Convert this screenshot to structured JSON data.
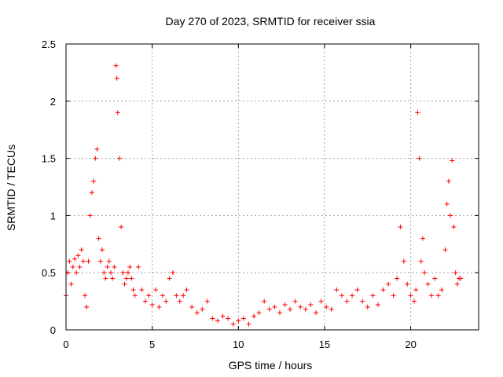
{
  "chart_data": {
    "type": "scatter",
    "title": "Day 270 of 2023, SRMTID for receiver ssia",
    "xlabel": "GPS time / hours",
    "ylabel": "SRMTID / TECUs",
    "xlim": [
      0,
      23.94
    ],
    "ylim": [
      0,
      2.5
    ],
    "x_ticks": [
      0,
      5,
      10,
      15,
      20
    ],
    "x_tick_labels": [
      "0",
      "5",
      "10",
      "15",
      "20"
    ],
    "y_ticks": [
      0,
      0.5,
      1,
      1.5,
      2,
      2.5
    ],
    "y_tick_labels": [
      "0",
      "0.5",
      "1",
      "1.5",
      "2",
      "2.5"
    ],
    "grid": true,
    "marker": "+",
    "colors": {
      "series": "#ff0000",
      "grid": "#a0a0a0",
      "frame": "#000000"
    },
    "series": [
      {
        "name": "SRMTID",
        "x": [
          0.0,
          0.1,
          0.2,
          0.3,
          0.4,
          0.5,
          0.6,
          0.7,
          0.8,
          0.9,
          1.0,
          1.1,
          1.2,
          1.3,
          1.4,
          1.5,
          1.6,
          1.7,
          1.8,
          1.9,
          2.0,
          2.1,
          2.2,
          2.3,
          2.4,
          2.5,
          2.6,
          2.7,
          2.8,
          2.9,
          2.95,
          3.0,
          3.1,
          3.2,
          3.3,
          3.4,
          3.5,
          3.6,
          3.7,
          3.8,
          3.9,
          4.0,
          4.2,
          4.4,
          4.6,
          4.8,
          5.0,
          5.2,
          5.4,
          5.6,
          5.8,
          6.0,
          6.2,
          6.4,
          6.6,
          6.8,
          7.0,
          7.3,
          7.6,
          7.9,
          8.2,
          8.5,
          8.8,
          9.1,
          9.4,
          9.7,
          10.0,
          10.3,
          10.6,
          10.9,
          11.2,
          11.5,
          11.8,
          12.1,
          12.4,
          12.7,
          13.0,
          13.3,
          13.6,
          13.9,
          14.2,
          14.5,
          14.8,
          15.1,
          15.4,
          15.7,
          16.0,
          16.3,
          16.6,
          16.9,
          17.2,
          17.5,
          17.8,
          18.1,
          18.4,
          18.7,
          19.0,
          19.2,
          19.4,
          19.6,
          19.8,
          20.0,
          20.2,
          20.3,
          20.4,
          20.5,
          20.6,
          20.7,
          20.8,
          21.0,
          21.2,
          21.4,
          21.6,
          21.8,
          22.0,
          22.1,
          22.2,
          22.3,
          22.4,
          22.5,
          22.6,
          22.7,
          22.8,
          22.9
        ],
        "y": [
          0.3,
          0.5,
          0.6,
          0.4,
          0.55,
          0.62,
          0.5,
          0.65,
          0.55,
          0.7,
          0.6,
          0.3,
          0.2,
          0.6,
          1.0,
          1.2,
          1.3,
          1.5,
          1.58,
          0.8,
          0.6,
          0.7,
          0.5,
          0.45,
          0.55,
          0.6,
          0.5,
          0.45,
          0.55,
          2.31,
          2.2,
          1.9,
          1.5,
          0.9,
          0.5,
          0.4,
          0.45,
          0.5,
          0.55,
          0.45,
          0.35,
          0.3,
          0.55,
          0.35,
          0.25,
          0.3,
          0.22,
          0.35,
          0.2,
          0.3,
          0.25,
          0.45,
          0.5,
          0.3,
          0.25,
          0.3,
          0.35,
          0.2,
          0.15,
          0.18,
          0.25,
          0.1,
          0.08,
          0.12,
          0.1,
          0.05,
          0.08,
          0.1,
          0.05,
          0.12,
          0.15,
          0.25,
          0.18,
          0.2,
          0.15,
          0.22,
          0.18,
          0.25,
          0.2,
          0.18,
          0.22,
          0.15,
          0.25,
          0.2,
          0.18,
          0.35,
          0.3,
          0.25,
          0.3,
          0.35,
          0.25,
          0.2,
          0.3,
          0.22,
          0.35,
          0.4,
          0.3,
          0.45,
          0.9,
          0.6,
          0.4,
          0.3,
          0.25,
          0.35,
          1.9,
          1.5,
          0.6,
          0.8,
          0.5,
          0.4,
          0.3,
          0.45,
          0.3,
          0.35,
          0.7,
          1.1,
          1.3,
          1.0,
          1.48,
          0.9,
          0.5,
          0.4,
          0.45,
          0.45
        ]
      }
    ]
  }
}
